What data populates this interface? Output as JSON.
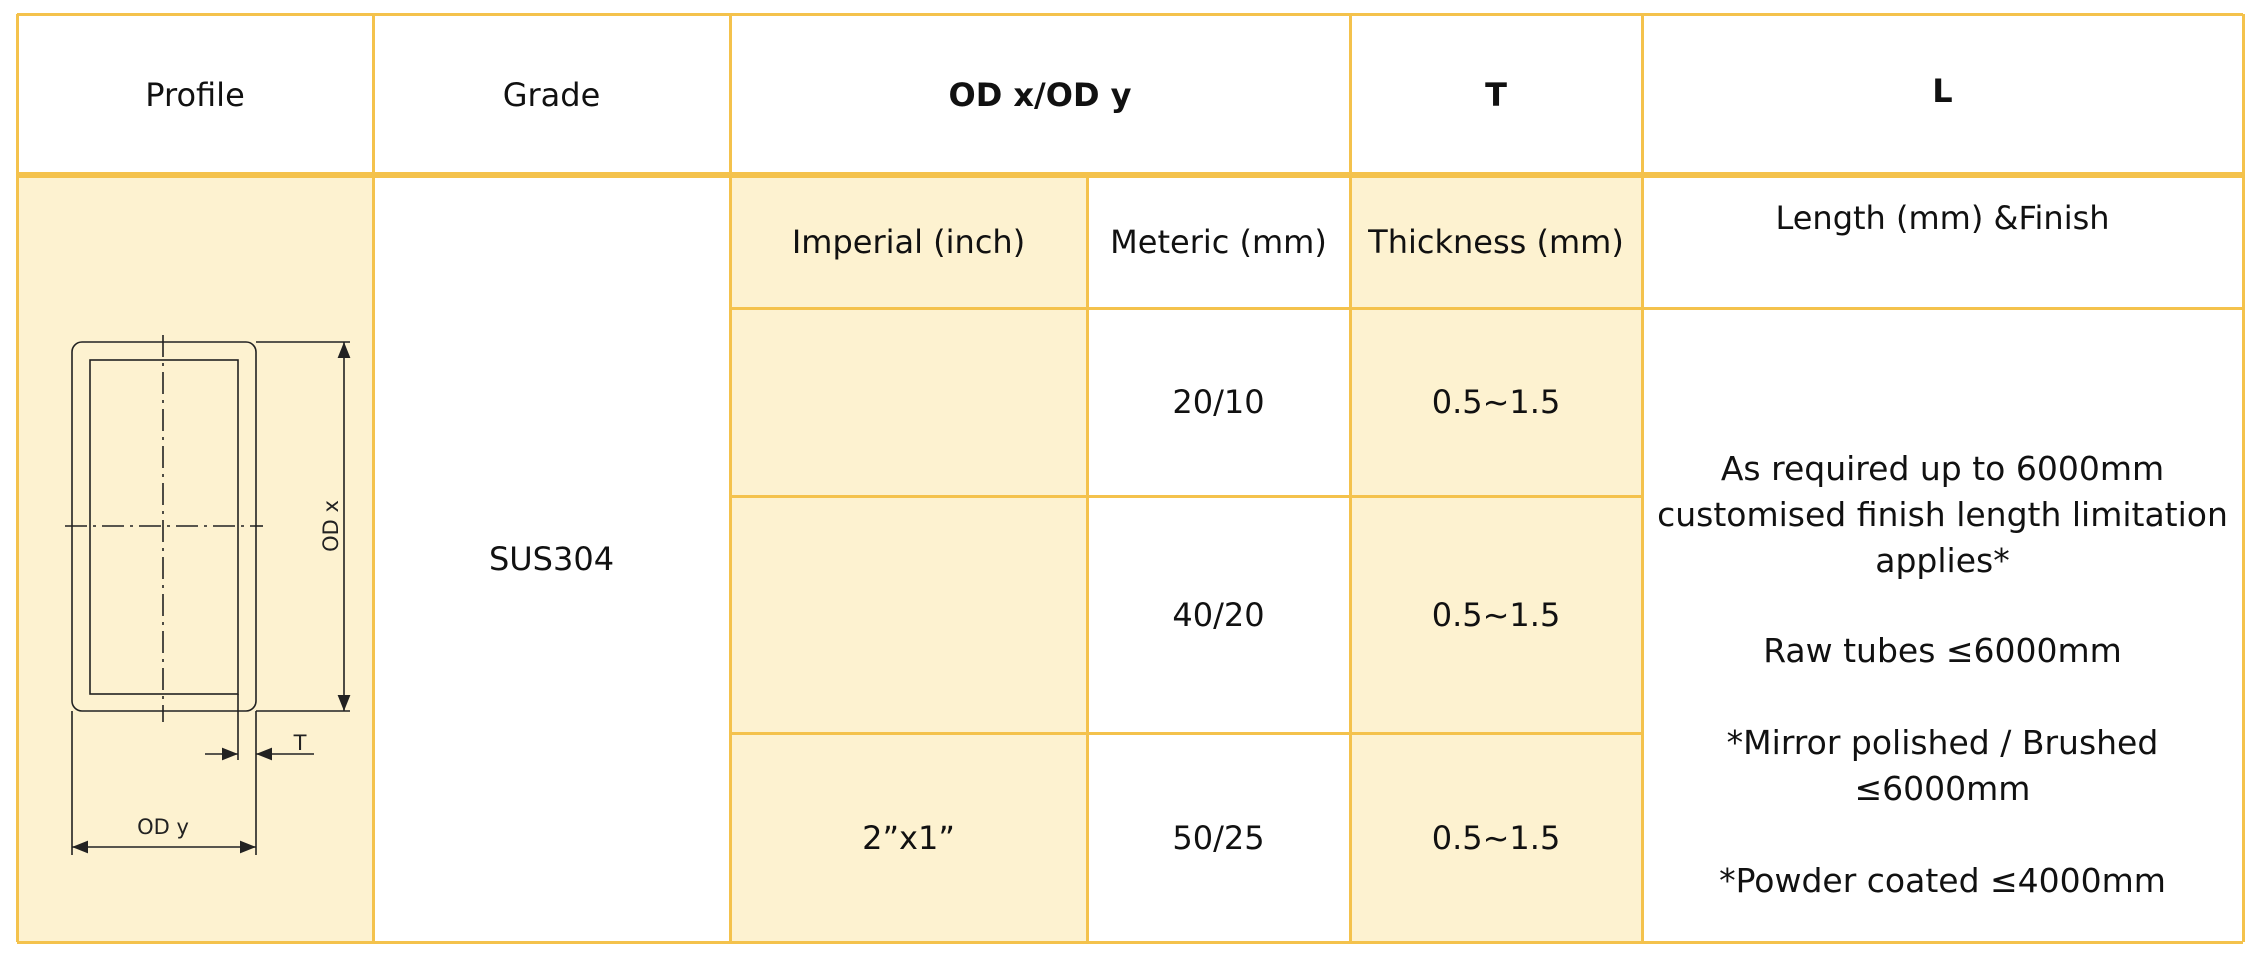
{
  "header": {
    "profile": "Profile",
    "grade": "Grade",
    "od": "OD x/OD y",
    "t": "T",
    "l": "L"
  },
  "subheader": {
    "imperial": "Imperial (inch)",
    "metric": "Meteric (mm)",
    "thickness": "Thickness (mm)",
    "length": "Length (mm) &Finish"
  },
  "grade": "SUS304",
  "rows": [
    {
      "metric": "20/10",
      "thickness": "0.5~1.5"
    },
    {
      "metric": "40/20",
      "thickness": "0.5~1.5"
    },
    {
      "imperial": "2”x1”",
      "metric": "50/25",
      "thickness": "0.5~1.5"
    }
  ],
  "length_notes": [
    "As required up to 6000mm customised finish length limitation applies*",
    "Raw tubes  ≤6000mm",
    "*Mirror polished / Brushed ≤6000mm",
    "*Powder coated ≤4000mm"
  ],
  "drawing": {
    "od_x": "OD x",
    "od_y": "OD y",
    "t": "T"
  }
}
